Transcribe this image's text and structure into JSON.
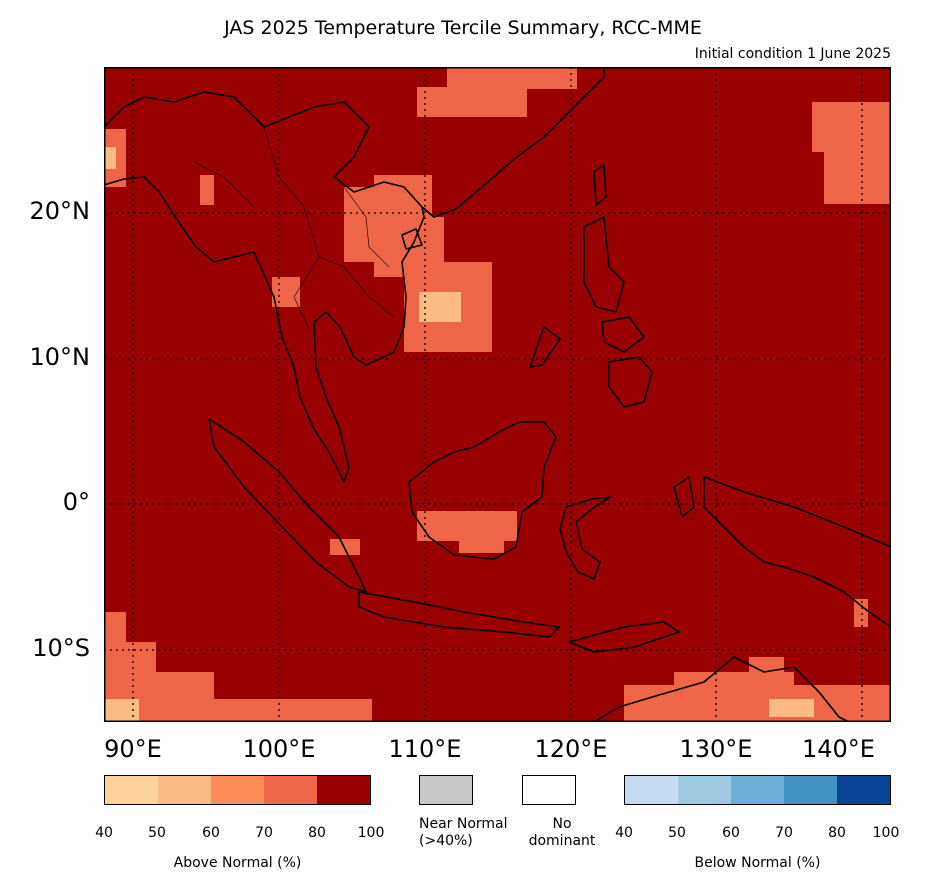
{
  "title": "JAS 2025 Temperature Tercile Summary, RCC-MME",
  "subtitle": "Initial condition 1 June 2025",
  "map": {
    "lon_range": [
      88,
      142
    ],
    "lat_range": [
      -15,
      30
    ],
    "lat_labels": [
      {
        "value": 20,
        "text": "20°N"
      },
      {
        "value": 10,
        "text": "10°N"
      },
      {
        "value": 0,
        "text": "0°"
      },
      {
        "value": -10,
        "text": "10°S"
      }
    ],
    "lon_labels": [
      {
        "value": 90,
        "text": "90°E"
      },
      {
        "value": 100,
        "text": "100°E"
      },
      {
        "value": 110,
        "text": "110°E"
      },
      {
        "value": 120,
        "text": "120°E"
      },
      {
        "value": 130,
        "text": "130°E"
      },
      {
        "value": 140,
        "text": "140°E"
      }
    ],
    "gridlines": true,
    "colors": {
      "background_80_100": "#990000",
      "above_70_80": "#ef6548",
      "above_60_70": "#fc8d59",
      "above_50_60": "#fdbb84",
      "above_40_50": "#fdd49e",
      "coast": "#000000"
    }
  },
  "legend": {
    "above": {
      "title": "Above Normal (%)",
      "ticks": [
        "40",
        "50",
        "60",
        "70",
        "80",
        "100"
      ],
      "colors": [
        "#fdd49e",
        "#fdbb84",
        "#fc8d59",
        "#ef6548",
        "#990000"
      ]
    },
    "near_normal": {
      "label_line1": "Near Normal",
      "label_line2": "(>40%)",
      "color": "#c8c8c8"
    },
    "no_dominant": {
      "label_line1": "No",
      "label_line2": "dominant",
      "color": "#ffffff"
    },
    "below": {
      "title": "Below Normal (%)",
      "ticks": [
        "40",
        "50",
        "60",
        "70",
        "80",
        "100"
      ],
      "colors": [
        "#c6dbef",
        "#9ecae1",
        "#6baed6",
        "#4292c6",
        "#084594"
      ]
    }
  }
}
